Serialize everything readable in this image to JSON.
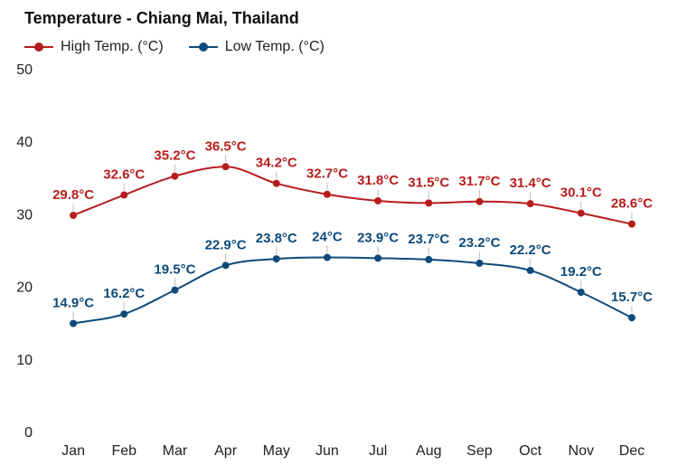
{
  "chart_data": {
    "type": "line",
    "title": "Temperature - Chiang Mai, Thailand",
    "categories": [
      "Jan",
      "Feb",
      "Mar",
      "Apr",
      "May",
      "Jun",
      "Jul",
      "Aug",
      "Sep",
      "Oct",
      "Nov",
      "Dec"
    ],
    "series": [
      {
        "name": "High Temp. (°C)",
        "color": "#b71c1c",
        "values": [
          29.8,
          32.6,
          35.2,
          36.5,
          34.2,
          32.7,
          31.8,
          31.5,
          31.7,
          31.4,
          30.1,
          28.6
        ],
        "labels": [
          "29.8°C",
          "32.6°C",
          "35.2°C",
          "36.5°C",
          "34.2°C",
          "32.7°C",
          "31.8°C",
          "31.5°C",
          "31.7°C",
          "31.4°C",
          "30.1°C",
          "28.6°C"
        ]
      },
      {
        "name": "Low Temp. (°C)",
        "color": "#0d4a7a",
        "values": [
          14.9,
          16.2,
          19.5,
          22.9,
          23.8,
          24.0,
          23.9,
          23.7,
          23.2,
          22.2,
          19.2,
          15.7
        ],
        "labels": [
          "14.9°C",
          "16.2°C",
          "19.5°C",
          "22.9°C",
          "23.8°C",
          "24°C",
          "23.9°C",
          "23.7°C",
          "23.2°C",
          "22.2°C",
          "19.2°C",
          "15.7°C"
        ]
      }
    ],
    "yticks": [
      0,
      10,
      20,
      30,
      40,
      50
    ],
    "ylim": [
      0,
      50
    ],
    "xlabel": "",
    "ylabel": "",
    "legend": "top-left",
    "grid": false,
    "smooth": true
  }
}
